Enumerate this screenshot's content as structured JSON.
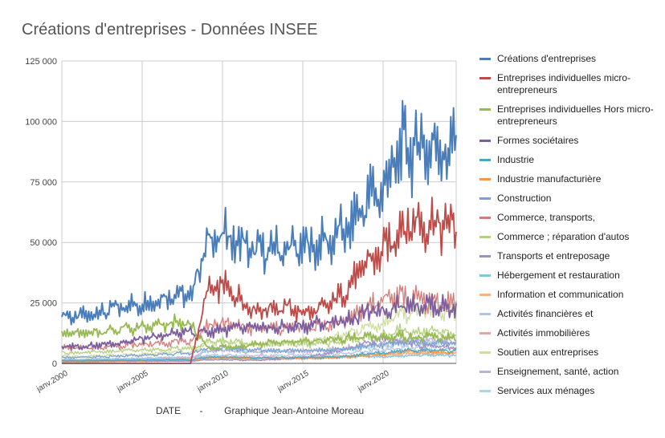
{
  "title": "Créations d'entreprises - Données INSEE",
  "chart_data": {
    "type": "line",
    "title": "Créations d'entreprises - Données INSEE",
    "xlabel": "DATE       -        Graphique Jean-Antoine Moreau",
    "ylabel": "",
    "ylim": [
      0,
      125000
    ],
    "yticks": [
      "0",
      "25 000",
      "50 000",
      "75 000",
      "100 000",
      "125 000"
    ],
    "xticks": [
      "janv.2000",
      "janv.2005",
      "janv.2010",
      "janv.2015",
      "janv.2020"
    ],
    "grid": true,
    "legend_position": "right",
    "x": [
      "2000",
      "2001",
      "2002",
      "2003",
      "2004",
      "2005",
      "2006",
      "2007",
      "2008",
      "2009",
      "2010",
      "2011",
      "2012",
      "2013",
      "2014",
      "2015",
      "2016",
      "2017",
      "2018",
      "2019",
      "2020",
      "2021",
      "2022",
      "2023",
      "2024"
    ],
    "series": [
      {
        "name": "Créations d'entreprises",
        "color": "#4a7ebb",
        "values": [
          20000,
          19000,
          20500,
          22000,
          24000,
          24500,
          26500,
          29000,
          27500,
          50000,
          53000,
          50000,
          46000,
          47000,
          47000,
          48000,
          49000,
          52000,
          57000,
          68000,
          72000,
          88000,
          90000,
          90000,
          88000
        ]
      },
      {
        "name": "Entreprises individuelles micro-entrepreneurs",
        "color": "#be4b48",
        "values": [
          0,
          0,
          0,
          0,
          0,
          0,
          0,
          0,
          0,
          29000,
          32000,
          27000,
          22000,
          23000,
          23000,
          21000,
          22000,
          26000,
          33000,
          42000,
          46000,
          56000,
          58000,
          58000,
          57000
        ]
      },
      {
        "name": "Entreprises individuelles Hors micro-entrepreneurs",
        "color": "#98b954",
        "values": [
          13000,
          12000,
          13000,
          13500,
          14500,
          14500,
          15500,
          16500,
          16000,
          6500,
          6800,
          7000,
          8000,
          8500,
          8800,
          9000,
          9500,
          10000,
          10500,
          11000,
          10500,
          11500,
          10500,
          11000,
          10500
        ]
      },
      {
        "name": "Formes sociétaires",
        "color": "#7d5fa0",
        "values": [
          7000,
          7000,
          7500,
          8000,
          9000,
          10000,
          11000,
          12500,
          13000,
          13000,
          14000,
          14500,
          14500,
          14500,
          15000,
          15500,
          16500,
          17000,
          18500,
          21000,
          22000,
          24000,
          24500,
          24000,
          23000
        ]
      },
      {
        "name": "Industrie",
        "color": "#46aac5",
        "values": [
          1200,
          1100,
          1200,
          1200,
          1300,
          1300,
          1400,
          1500,
          1500,
          2500,
          2600,
          2500,
          2300,
          2300,
          2300,
          2400,
          2500,
          2700,
          3200,
          3900,
          4300,
          5200,
          5400,
          5500,
          5300
        ]
      },
      {
        "name": "Industrie manufacturière",
        "color": "#f79646",
        "values": [
          1000,
          900,
          1000,
          1000,
          1100,
          1100,
          1200,
          1300,
          1300,
          2100,
          2200,
          2100,
          2000,
          2000,
          2000,
          2100,
          2200,
          2400,
          2800,
          3400,
          3800,
          4700,
          4900,
          5000,
          4800
        ]
      },
      {
        "name": "Construction",
        "color": "#7ba0d1",
        "values": [
          2500,
          2400,
          2600,
          2800,
          3100,
          3300,
          3700,
          4100,
          4000,
          6200,
          6400,
          6000,
          5500,
          5400,
          5300,
          5300,
          5500,
          5800,
          6300,
          7200,
          7500,
          8500,
          8700,
          8500,
          8200
        ]
      },
      {
        "name": "Commerce, transports,",
        "color": "#d57c79",
        "values": [
          6500,
          6200,
          6600,
          7000,
          7600,
          7800,
          8300,
          9000,
          8800,
          15500,
          16500,
          15500,
          14000,
          14500,
          14500,
          15000,
          15500,
          16500,
          18500,
          23500,
          27000,
          27500,
          26500,
          25500,
          25000
        ]
      },
      {
        "name": "Commerce ; réparation d'autos",
        "color": "#b3d07e",
        "values": [
          4500,
          4300,
          4600,
          4900,
          5300,
          5400,
          5800,
          6200,
          6000,
          8800,
          9200,
          8700,
          7900,
          8000,
          7900,
          8000,
          8200,
          8700,
          9500,
          11000,
          11500,
          13500,
          13500,
          13000,
          12500
        ]
      },
      {
        "name": "Transports et entreposage",
        "color": "#a08ebf",
        "values": [
          700,
          650,
          700,
          750,
          800,
          800,
          850,
          900,
          900,
          1400,
          1500,
          1400,
          1300,
          1500,
          1900,
          2500,
          3500,
          5000,
          6500,
          8500,
          10500,
          8500,
          7500,
          7000,
          6500
        ]
      },
      {
        "name": "Hébergement et restauration",
        "color": "#7fc8db",
        "values": [
          1300,
          1300,
          1400,
          1400,
          1500,
          1500,
          1600,
          1700,
          1700,
          2300,
          2400,
          2300,
          2200,
          2200,
          2200,
          2300,
          2400,
          2500,
          2700,
          2900,
          2500,
          3000,
          3300,
          3400,
          3300
        ]
      },
      {
        "name": "Information et communication",
        "color": "#fab27d",
        "values": [
          600,
          550,
          600,
          650,
          700,
          750,
          800,
          900,
          900,
          1800,
          1900,
          1800,
          1700,
          1700,
          1800,
          1900,
          2000,
          2200,
          2500,
          2900,
          3300,
          3900,
          4100,
          4100,
          4000
        ]
      },
      {
        "name": "Activités financières et",
        "color": "#b0c6e4",
        "values": [
          1800,
          1700,
          1800,
          1900,
          2000,
          2100,
          2300,
          2500,
          2500,
          3300,
          3400,
          3300,
          3200,
          3300,
          3400,
          3500,
          3700,
          4000,
          4500,
          5000,
          5400,
          6300,
          6500,
          6500,
          6300
        ]
      },
      {
        "name": "Activités immobilières",
        "color": "#e5a7a5",
        "values": [
          1500,
          1400,
          1600,
          1700,
          1900,
          2000,
          2200,
          2300,
          2200,
          2700,
          2800,
          2700,
          2500,
          2500,
          2500,
          2600,
          2700,
          2900,
          3200,
          3600,
          3700,
          4300,
          4400,
          4300,
          4100
        ]
      },
      {
        "name": "Soutien aux entreprises",
        "color": "#cfdc9f",
        "values": [
          3000,
          2900,
          3100,
          3300,
          3600,
          3800,
          4200,
          4600,
          4600,
          8500,
          9000,
          8600,
          8000,
          8200,
          8500,
          9000,
          9800,
          10800,
          12500,
          15000,
          16500,
          20500,
          21500,
          21500,
          21000
        ]
      },
      {
        "name": "Enseignement, santé, action",
        "color": "#bbb0d5",
        "values": [
          1500,
          1400,
          1500,
          1600,
          1700,
          1800,
          1900,
          2000,
          2000,
          5000,
          5300,
          5000,
          4700,
          4800,
          4900,
          5100,
          5400,
          5800,
          6600,
          7600,
          7900,
          9400,
          9600,
          9500,
          9200
        ]
      },
      {
        "name": "Services aux ménages",
        "color": "#a6d9e7",
        "values": [
          1700,
          1600,
          1700,
          1800,
          1900,
          2000,
          2200,
          2400,
          2300,
          5400,
          5700,
          5300,
          4900,
          5000,
          5000,
          5100,
          5300,
          5600,
          6200,
          7000,
          7300,
          8400,
          8600,
          8500,
          8200
        ]
      }
    ]
  }
}
